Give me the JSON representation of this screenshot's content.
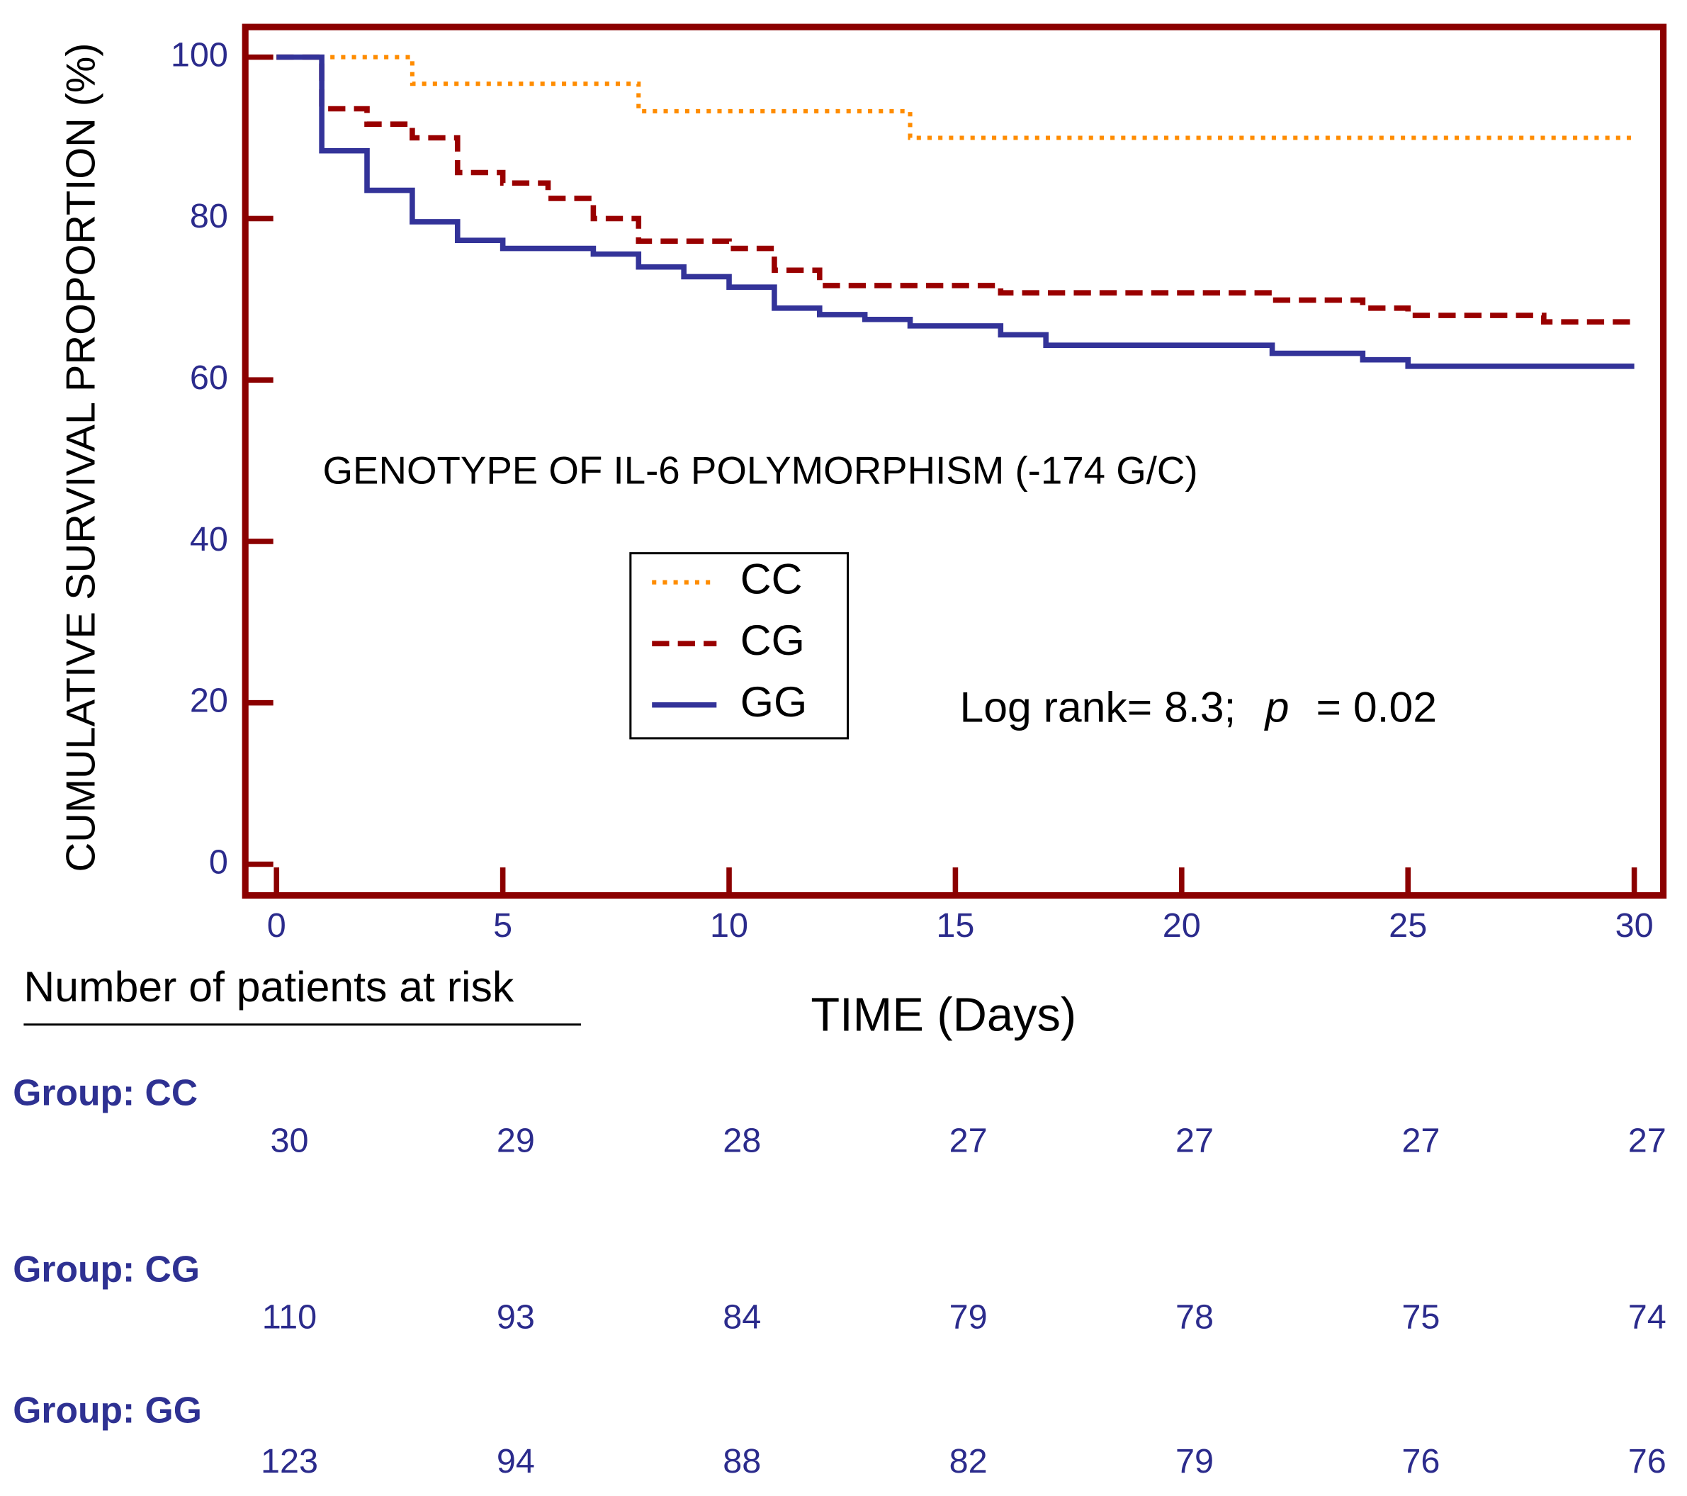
{
  "chart_data": {
    "type": "step",
    "x_label": "TIME (Days)",
    "y_label": "CUMULATIVE SURVIVAL PROPORTION (%)",
    "xlim": [
      0,
      30
    ],
    "xticks": [
      0,
      5,
      10,
      15,
      20,
      25,
      30
    ],
    "ylim": [
      0,
      100
    ],
    "yticks": [
      0,
      20,
      40,
      60,
      80,
      100
    ],
    "annotations": [
      "GENOTYPE OF IL-6 POLYMORPHISM (-174 G/C)",
      "Log rank= 8.3;",
      "p",
      "= 0.02"
    ],
    "series": [
      {
        "name": "CC",
        "color": "#ff8c00",
        "line_style": "dotted",
        "x": [
          0,
          3,
          8,
          14,
          30
        ],
        "values": [
          100,
          96.7,
          93.3,
          90,
          90
        ]
      },
      {
        "name": "CG",
        "color": "#990000",
        "line_style": "dashed",
        "x": [
          0,
          1,
          2,
          3,
          4,
          5,
          6,
          7,
          8,
          10,
          11,
          12,
          16,
          22,
          24,
          25,
          28,
          30
        ],
        "values": [
          100,
          93.6,
          91.7,
          90,
          85.7,
          84.4,
          82.5,
          80,
          77.2,
          76.3,
          73.6,
          71.7,
          70.8,
          69.9,
          68.9,
          68,
          67.2,
          67.2
        ]
      },
      {
        "name": "GG",
        "color": "#333399",
        "line_style": "solid",
        "x": [
          0,
          1,
          2,
          3,
          4,
          5,
          7,
          8,
          9,
          10,
          11,
          12,
          13,
          14,
          16,
          17,
          22,
          24,
          25,
          30
        ],
        "values": [
          100,
          88.4,
          83.5,
          79.6,
          77.3,
          76.3,
          75.6,
          74,
          72.8,
          71.5,
          68.9,
          68.1,
          67.5,
          66.7,
          65.6,
          64.3,
          63.3,
          62.5,
          61.7,
          61.7
        ]
      }
    ]
  },
  "risk_table": {
    "title": "Number of patients at risk",
    "groups": [
      {
        "label": "Group: CC",
        "values": [
          30,
          29,
          28,
          27,
          27,
          27,
          27
        ]
      },
      {
        "label": "Group: CG",
        "values": [
          110,
          93,
          84,
          79,
          78,
          75,
          74
        ]
      },
      {
        "label": "Group: GG",
        "values": [
          123,
          94,
          88,
          82,
          79,
          76,
          76
        ]
      }
    ]
  }
}
